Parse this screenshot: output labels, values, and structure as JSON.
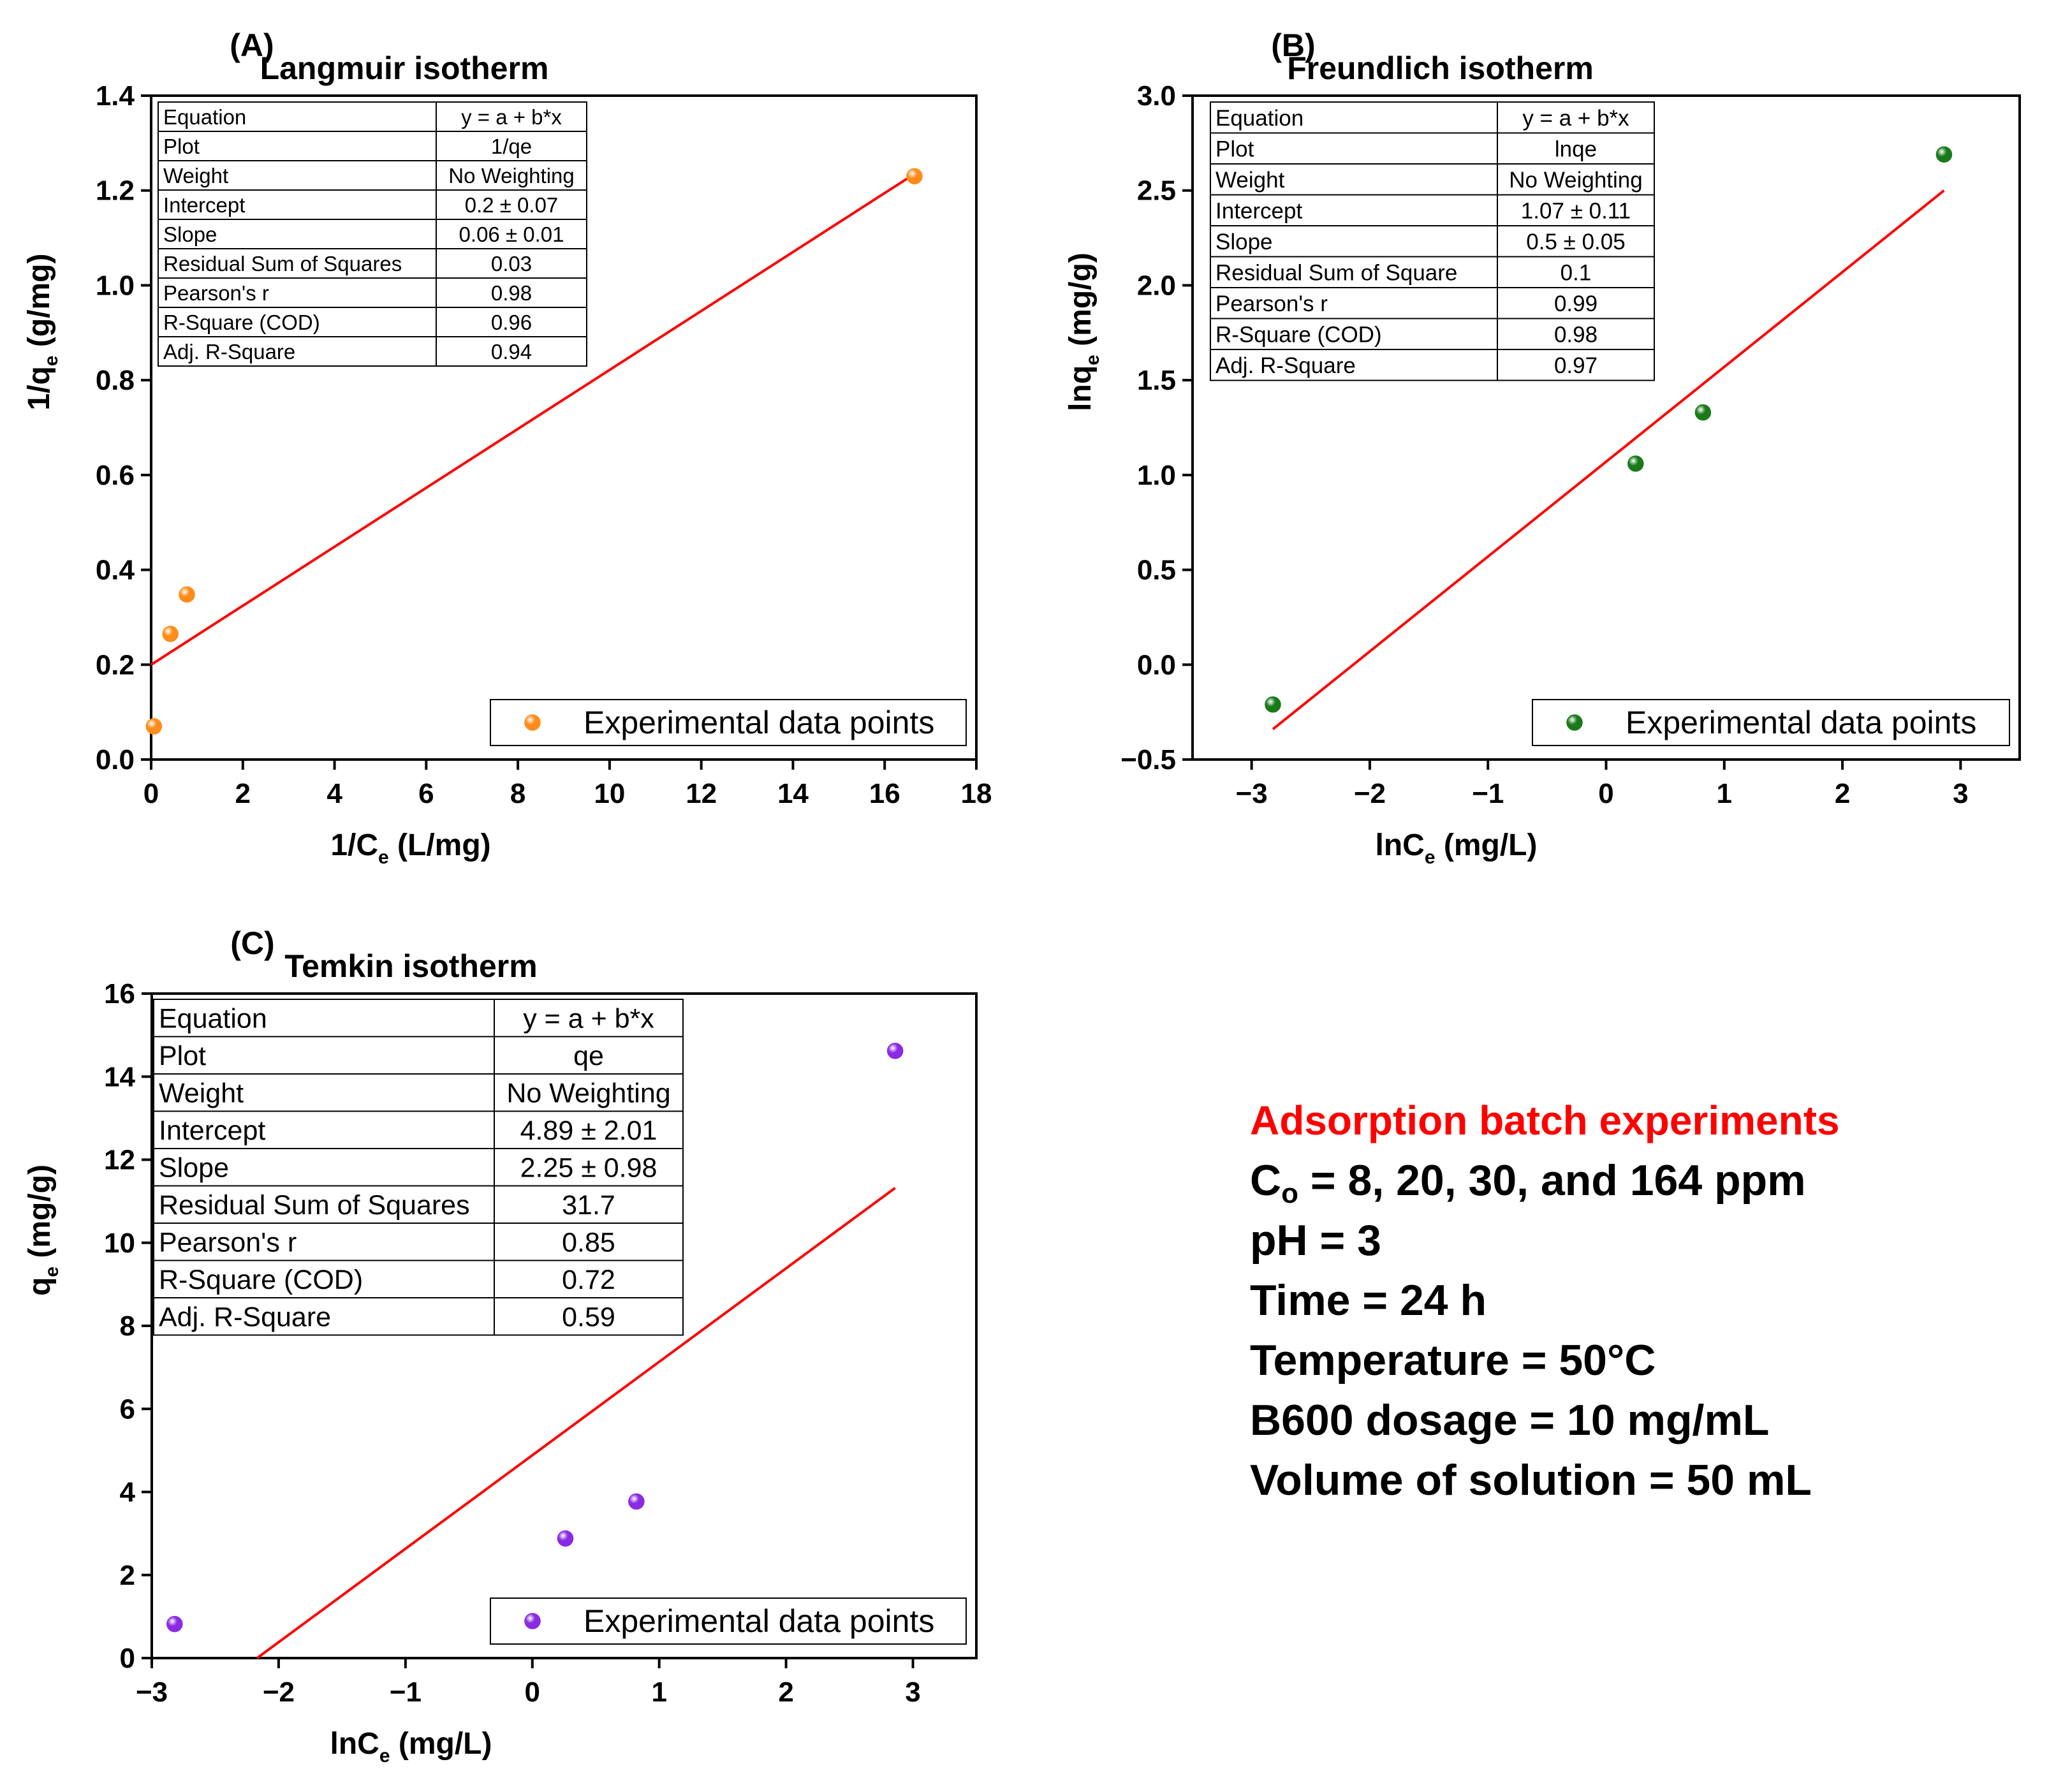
{
  "chart_data": [
    {
      "id": "A",
      "type": "scatter",
      "panel_label": "(A)",
      "title": "Langmuir isotherm",
      "xlabel": {
        "main": "1/C",
        "sub": "e",
        "rest": " (L/mg)"
      },
      "ylabel": {
        "main": "1/q",
        "sub": "e",
        "rest": " (g/mg)"
      },
      "xlim": [
        0,
        18
      ],
      "ylim": [
        0,
        1.4
      ],
      "xticks": [
        0,
        2,
        4,
        6,
        8,
        10,
        12,
        14,
        16,
        18
      ],
      "yticks": [
        0.0,
        0.2,
        0.4,
        0.6,
        0.8,
        1.0,
        1.2,
        1.4
      ],
      "xtick_labels": [
        "0",
        "2",
        "4",
        "6",
        "8",
        "10",
        "12",
        "14",
        "16",
        "18"
      ],
      "ytick_labels": [
        "0.0",
        "0.2",
        "0.4",
        "0.6",
        "0.8",
        "1.0",
        "1.2",
        "1.4"
      ],
      "points": {
        "x": [
          0.06,
          0.42,
          0.78,
          16.65
        ],
        "y": [
          0.07,
          0.265,
          0.348,
          1.23
        ]
      },
      "point_color": "#ff8c1a",
      "fit_line": {
        "x": [
          0,
          16.65
        ],
        "y": [
          0.2,
          1.235
        ],
        "color": "#ff0000"
      },
      "legend": {
        "label": "Experimental data points",
        "position": "bottom-right"
      },
      "stats_table": [
        [
          "Equation",
          "y = a + b*x"
        ],
        [
          "Plot",
          "1/qe"
        ],
        [
          "Weight",
          "No Weighting"
        ],
        [
          "Intercept",
          "0.2 ± 0.07"
        ],
        [
          "Slope",
          "0.06 ± 0.01"
        ],
        [
          "Residual Sum of Squares",
          "0.03"
        ],
        [
          "Pearson's r",
          "0.98"
        ],
        [
          "R-Square (COD)",
          "0.96"
        ],
        [
          "Adj. R-Square",
          "0.94"
        ]
      ]
    },
    {
      "id": "B",
      "type": "scatter",
      "panel_label": "(B)",
      "title": "Freundlich isotherm",
      "xlabel": {
        "main": "lnC",
        "sub": "e",
        "rest": " (mg/L)"
      },
      "ylabel": {
        "main": "lnq",
        "sub": "e",
        "rest": " (mg/g)"
      },
      "xlim": [
        -3.5,
        3.5
      ],
      "ylim": [
        -0.5,
        3.0
      ],
      "xticks": [
        -3,
        -2,
        -1,
        0,
        1,
        2,
        3
      ],
      "yticks": [
        -0.5,
        0.0,
        0.5,
        1.0,
        1.5,
        2.0,
        2.5,
        3.0
      ],
      "xtick_labels": [
        "−3",
        "−2",
        "−1",
        "0",
        "1",
        "2",
        "3"
      ],
      "ytick_labels": [
        "−0.5",
        "0.0",
        "0.5",
        "1.0",
        "1.5",
        "2.0",
        "2.5",
        "3.0"
      ],
      "points": {
        "x": [
          -2.82,
          0.25,
          0.82,
          2.86
        ],
        "y": [
          -0.21,
          1.06,
          1.33,
          2.69
        ]
      },
      "point_color": "#1a7a1a",
      "fit_line": {
        "x": [
          -2.82,
          2.86
        ],
        "y": [
          -0.34,
          2.5
        ],
        "color": "#ff0000"
      },
      "legend": {
        "label": "Experimental data points",
        "position": "bottom-right"
      },
      "stats_table": [
        [
          "Equation",
          "y = a + b*x"
        ],
        [
          "Plot",
          "lnqe"
        ],
        [
          "Weight",
          "No Weighting"
        ],
        [
          "Intercept",
          "1.07 ± 0.11"
        ],
        [
          "Slope",
          "0.5 ± 0.05"
        ],
        [
          "Residual Sum of Square",
          "0.1"
        ],
        [
          "Pearson's r",
          "0.99"
        ],
        [
          "R-Square (COD)",
          "0.98"
        ],
        [
          "Adj. R-Square",
          "0.97"
        ]
      ]
    },
    {
      "id": "C",
      "type": "scatter",
      "panel_label": "(C)",
      "title": "Temkin isotherm",
      "xlabel": {
        "main": "lnC",
        "sub": "e",
        "rest": " (mg/L)"
      },
      "ylabel": {
        "main": "q",
        "sub": "e",
        "rest": " (mg/g)"
      },
      "xlim": [
        -3,
        3.5
      ],
      "ylim": [
        0,
        16
      ],
      "xticks": [
        -3,
        -2,
        -1,
        0,
        1,
        2,
        3
      ],
      "yticks": [
        0,
        2,
        4,
        6,
        8,
        10,
        12,
        14,
        16
      ],
      "xtick_labels": [
        "−3",
        "−2",
        "−1",
        "0",
        "1",
        "2",
        "3"
      ],
      "ytick_labels": [
        "0",
        "2",
        "4",
        "6",
        "8",
        "10",
        "12",
        "14",
        "16"
      ],
      "points": {
        "x": [
          -2.82,
          0.26,
          0.82,
          2.86
        ],
        "y": [
          0.82,
          2.88,
          3.77,
          14.62
        ]
      },
      "point_color": "#8a2be2",
      "fit_line": {
        "x": [
          -2.17,
          2.86
        ],
        "y": [
          0.0,
          11.32
        ],
        "color": "#ff0000"
      },
      "legend": {
        "label": "Experimental data points",
        "position": "bottom-right"
      },
      "stats_table": [
        [
          "Equation",
          "y = a + b*x"
        ],
        [
          "Plot",
          "qe"
        ],
        [
          "Weight",
          "No Weighting"
        ],
        [
          "Intercept",
          "4.89 ± 2.01"
        ],
        [
          "Slope",
          "2.25 ± 0.98"
        ],
        [
          "Residual Sum of Squares",
          "31.7"
        ],
        [
          "Pearson's r",
          "0.85"
        ],
        [
          "R-Square (COD)",
          "0.72"
        ],
        [
          "Adj. R-Square",
          "0.59"
        ]
      ]
    }
  ],
  "conditions": {
    "heading": "Adsorption batch experiments",
    "concentration": {
      "prefix": "C",
      "sub": "o",
      "rest": " = 8, 20, 30, and 164 ppm"
    },
    "ph": "pH = 3",
    "time": "Time = 24 h",
    "temperature": "Temperature = 50°C",
    "dosage": "B600 dosage = 10 mg/mL",
    "volume": "Volume of solution = 50 mL"
  }
}
